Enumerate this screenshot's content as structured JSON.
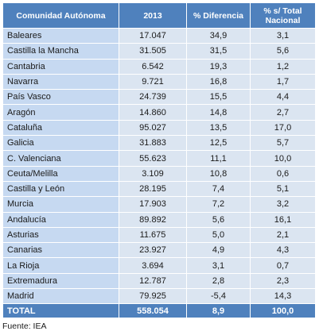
{
  "table": {
    "headers": [
      "Comunidad Autónoma",
      "2013",
      "% Diferencia",
      "% s/ Total Nacional"
    ],
    "rows": [
      [
        "Baleares",
        "17.047",
        "34,9",
        "3,1"
      ],
      [
        "Castilla la Mancha",
        "31.505",
        "31,5",
        "5,6"
      ],
      [
        "Cantabria",
        "6.542",
        "19,3",
        "1,2"
      ],
      [
        "Navarra",
        "9.721",
        "16,8",
        "1,7"
      ],
      [
        "País Vasco",
        "24.739",
        "15,5",
        "4,4"
      ],
      [
        "Aragón",
        "14.860",
        "14,8",
        "2,7"
      ],
      [
        "Cataluña",
        "95.027",
        "13,5",
        "17,0"
      ],
      [
        "Galicia",
        "31.883",
        "12,5",
        "5,7"
      ],
      [
        "C. Valenciana",
        "55.623",
        "11,1",
        "10,0"
      ],
      [
        "Ceuta/Melilla",
        "3.109",
        "10,8",
        "0,6"
      ],
      [
        "Castilla y León",
        "28.195",
        "7,4",
        "5,1"
      ],
      [
        "Murcia",
        "17.903",
        "7,2",
        "3,2"
      ],
      [
        "Andalucía",
        "89.892",
        "5,6",
        "16,1"
      ],
      [
        "Asturias",
        "11.675",
        "5,0",
        "2,1"
      ],
      [
        "Canarias",
        "23.927",
        "4,9",
        "4,3"
      ],
      [
        "La Rioja",
        "3.694",
        "3,1",
        "0,7"
      ],
      [
        "Extremadura",
        "12.787",
        "2,8",
        "2,3"
      ],
      [
        "Madrid",
        "79.925",
        "-5,4",
        "14,3"
      ]
    ],
    "total": [
      "TOTAL",
      "558.054",
      "8,9",
      "100,0"
    ]
  },
  "source": "Fuente: IEA"
}
